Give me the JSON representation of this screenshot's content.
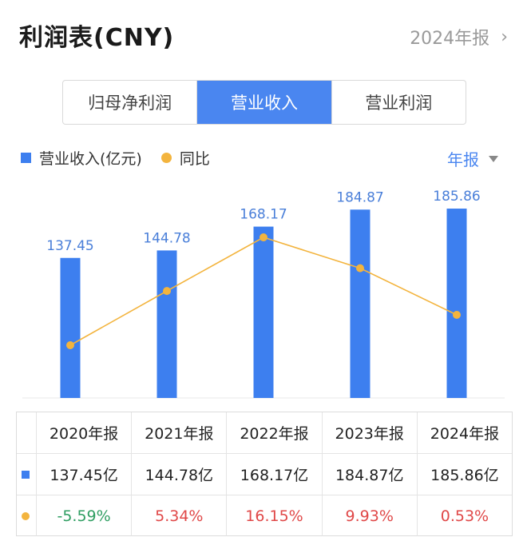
{
  "header": {
    "title": "利润表(CNY)",
    "period": "2024年报"
  },
  "tabs": [
    {
      "label": "归母净利润",
      "active": false
    },
    {
      "label": "营业收入",
      "active": true
    },
    {
      "label": "营业利润",
      "active": false
    }
  ],
  "legend": {
    "bar_label": "营业收入(亿元)",
    "line_label": "同比"
  },
  "frequency": "年报",
  "colors": {
    "bar": "#3d7fef",
    "line": "#f3b43e",
    "accent": "#4a86f0",
    "positive": "#e04848",
    "negative": "#2f9e62"
  },
  "chart_data": {
    "type": "bar",
    "categories": [
      "2020年报",
      "2021年报",
      "2022年报",
      "2023年报",
      "2024年报"
    ],
    "series": [
      {
        "name": "营业收入(亿元)",
        "type": "bar",
        "values": [
          137.45,
          144.78,
          168.17,
          184.87,
          185.86
        ]
      },
      {
        "name": "同比",
        "type": "line",
        "values": [
          -5.59,
          5.34,
          16.15,
          9.93,
          0.53
        ]
      }
    ],
    "bar_labels": [
      "137.45",
      "144.78",
      "168.17",
      "184.87",
      "185.86"
    ],
    "grid": false
  },
  "table": {
    "headers": [
      "2020年报",
      "2021年报",
      "2022年报",
      "2023年报",
      "2024年报"
    ],
    "revenue": [
      "137.45亿",
      "144.78亿",
      "168.17亿",
      "184.87亿",
      "185.86亿"
    ],
    "yoy": [
      "-5.59%",
      "5.34%",
      "16.15%",
      "9.93%",
      "0.53%"
    ]
  }
}
